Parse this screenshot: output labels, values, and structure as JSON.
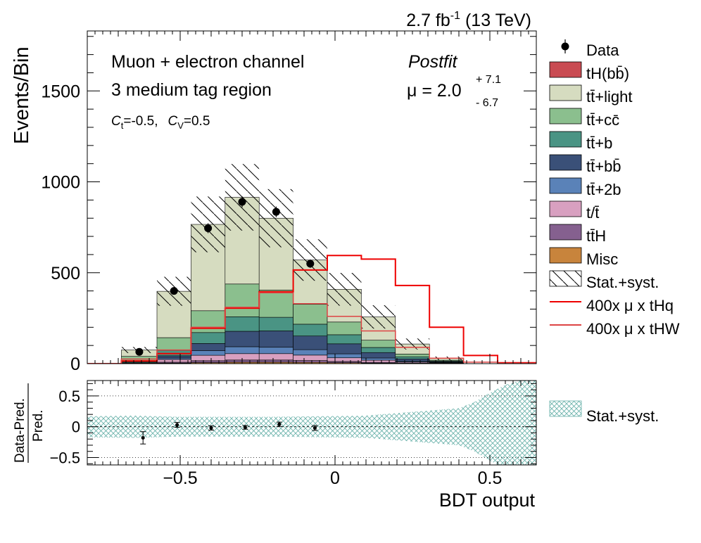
{
  "lumi": {
    "text": "2.7 fb",
    "sup": "-1",
    "suffix": " (13 TeV)"
  },
  "annotations": {
    "line1": "Muon + electron channel",
    "line2": "3 medium tag region",
    "ct_label": "C",
    "ct_sub": "t",
    "ct_val": "=-0.5,",
    "cv_label": "C",
    "cv_sub": "V",
    "cv_val": "=0.5",
    "postfit": "Postfit",
    "mu_label": "μ = 2.0",
    "mu_up": "+ 7.1",
    "mu_down": "-  6.7"
  },
  "legend": {
    "entries": [
      {
        "key": "data",
        "label": "Data",
        "kind": "marker",
        "color": "#000000"
      },
      {
        "key": "tH",
        "label": "tH(bb̄)",
        "kind": "box",
        "color": "#c94b52"
      },
      {
        "key": "ttlight",
        "label": "tt̄+light",
        "kind": "box",
        "color": "#d6dcc0"
      },
      {
        "key": "ttcc",
        "label": "tt̄+cc̄",
        "kind": "box",
        "color": "#8bbf8e"
      },
      {
        "key": "ttb",
        "label": "tt̄+b",
        "kind": "box",
        "color": "#4a9484"
      },
      {
        "key": "ttbb",
        "label": "tt̄+bb̄",
        "kind": "box",
        "color": "#3a5078"
      },
      {
        "key": "tt2b",
        "label": "tt̄+2b",
        "kind": "box",
        "color": "#5a82b8"
      },
      {
        "key": "t",
        "label": "t/t̄",
        "kind": "box",
        "color": "#d8a0c0"
      },
      {
        "key": "ttH",
        "label": "tt̄H",
        "kind": "box",
        "color": "#85608f"
      },
      {
        "key": "misc",
        "label": "Misc",
        "kind": "box",
        "color": "#c8843c"
      },
      {
        "key": "unc",
        "label": "Stat.+syst.",
        "kind": "hatch",
        "color": "#000000"
      },
      {
        "key": "thq",
        "label": "400x μ x tHq",
        "kind": "line",
        "color": "#ee0000"
      },
      {
        "key": "thw",
        "label": "400x μ x tHW",
        "kind": "line",
        "color": "#dd4444"
      }
    ],
    "ratio_entry": "Stat.+syst."
  },
  "chart_data": [
    {
      "type": "bar",
      "stacked": true,
      "xlabel": "BDT output",
      "ylabel": "Events/Bin",
      "xlim": [
        -0.8,
        0.65
      ],
      "ylim": [
        0,
        1830
      ],
      "y_ticks": [
        0,
        500,
        1000,
        1500
      ],
      "bin_edges": [
        -0.8,
        -0.69,
        -0.575,
        -0.465,
        -0.355,
        -0.245,
        -0.135,
        -0.025,
        0.085,
        0.195,
        0.305,
        0.415,
        0.525,
        0.65
      ],
      "series": [
        {
          "name": "Misc",
          "color": "#c8843c",
          "values": [
            0,
            0,
            3,
            6,
            8,
            8,
            7,
            5,
            3,
            2,
            1,
            0,
            0
          ]
        },
        {
          "name": "tt̄H",
          "color": "#85608f",
          "values": [
            0,
            0,
            5,
            10,
            12,
            12,
            10,
            7,
            4,
            2,
            1,
            0,
            0
          ]
        },
        {
          "name": "t/t̄",
          "color": "#d8a0c0",
          "values": [
            0,
            2,
            15,
            30,
            35,
            35,
            30,
            20,
            12,
            5,
            2,
            0,
            0
          ]
        },
        {
          "name": "tt̄+2b",
          "color": "#5a82b8",
          "values": [
            0,
            1,
            8,
            25,
            38,
            35,
            30,
            22,
            12,
            5,
            2,
            0,
            0
          ]
        },
        {
          "name": "tt̄+bb̄",
          "color": "#3a5078",
          "values": [
            0,
            2,
            12,
            40,
            85,
            90,
            75,
            55,
            30,
            12,
            4,
            0,
            0
          ]
        },
        {
          "name": "tt̄+b",
          "color": "#4a9484",
          "values": [
            0,
            5,
            30,
            60,
            80,
            75,
            65,
            50,
            28,
            12,
            4,
            0,
            0
          ]
        },
        {
          "name": "tt̄+cc̄",
          "color": "#8bbf8e",
          "values": [
            0,
            30,
            70,
            120,
            180,
            150,
            110,
            70,
            40,
            15,
            5,
            0,
            0
          ]
        },
        {
          "name": "tt̄+light",
          "color": "#d6dcc0",
          "values": [
            0,
            35,
            255,
            475,
            477,
            395,
            243,
            180,
            128,
            55,
            10,
            0,
            0
          ]
        },
        {
          "name": "tH(bb̄)",
          "color": "#c94b52",
          "values": [
            0,
            0,
            0,
            0,
            0,
            0,
            0,
            0,
            0,
            0,
            0,
            0,
            0
          ]
        }
      ],
      "uncertainty": {
        "name": "Stat.+syst.",
        "rel": [
          0.25,
          0.22,
          0.2,
          0.2,
          0.2,
          0.2,
          0.2,
          0.22,
          0.25,
          0.28,
          0.35,
          0.5,
          0.9
        ]
      },
      "data_points": {
        "name": "Data",
        "x": [
          -0.632,
          -0.52,
          -0.41,
          -0.3,
          -0.19,
          -0.08
        ],
        "y": [
          65,
          400,
          745,
          890,
          835,
          550
        ],
        "err": [
          12,
          20,
          27,
          30,
          29,
          23
        ]
      },
      "signal_lines": [
        {
          "name": "400x μ x tHq",
          "color": "#ee0000",
          "width": 2,
          "values": [
            0,
            15,
            55,
            195,
            305,
            395,
            515,
            595,
            575,
            430,
            200,
            45,
            5
          ]
        },
        {
          "name": "400x μ x tHW",
          "color": "#dd4444",
          "width": 1.5,
          "values": [
            0,
            25,
            75,
            200,
            310,
            390,
            330,
            260,
            180,
            90,
            30,
            8,
            2
          ]
        }
      ]
    },
    {
      "type": "scatter",
      "xlabel": "BDT output",
      "ylabel_num": "Data-Pred.",
      "ylabel_den": "Pred.",
      "xlim": [
        -0.8,
        0.65
      ],
      "ylim": [
        -0.62,
        0.75
      ],
      "x_ticks": [
        -0.5,
        0,
        0.5
      ],
      "x_tick_labels": [
        "−0.5",
        "0",
        "0.5"
      ],
      "y_ticks": [
        -0.5,
        0,
        0.5
      ],
      "y_tick_labels": [
        "−0.5",
        "0",
        "0.5"
      ],
      "grid_y": [
        -0.5,
        0.5
      ],
      "points": {
        "x": [
          -0.62,
          -0.51,
          -0.4,
          -0.29,
          -0.18,
          -0.065
        ],
        "y": [
          -0.18,
          0.03,
          -0.02,
          -0.01,
          0.04,
          -0.02
        ],
        "err": [
          0.1,
          0.04,
          0.035,
          0.03,
          0.035,
          0.04
        ]
      },
      "band": {
        "name": "Stat.+syst.",
        "x": [
          -0.8,
          -0.65,
          -0.5,
          -0.35,
          -0.2,
          -0.05,
          0.1,
          0.2,
          0.3,
          0.4,
          0.45,
          0.5,
          0.55,
          0.6,
          0.65
        ],
        "half": [
          0.17,
          0.18,
          0.16,
          0.16,
          0.16,
          0.17,
          0.18,
          0.22,
          0.26,
          0.3,
          0.4,
          0.55,
          0.68,
          0.75,
          0.75
        ]
      }
    }
  ]
}
